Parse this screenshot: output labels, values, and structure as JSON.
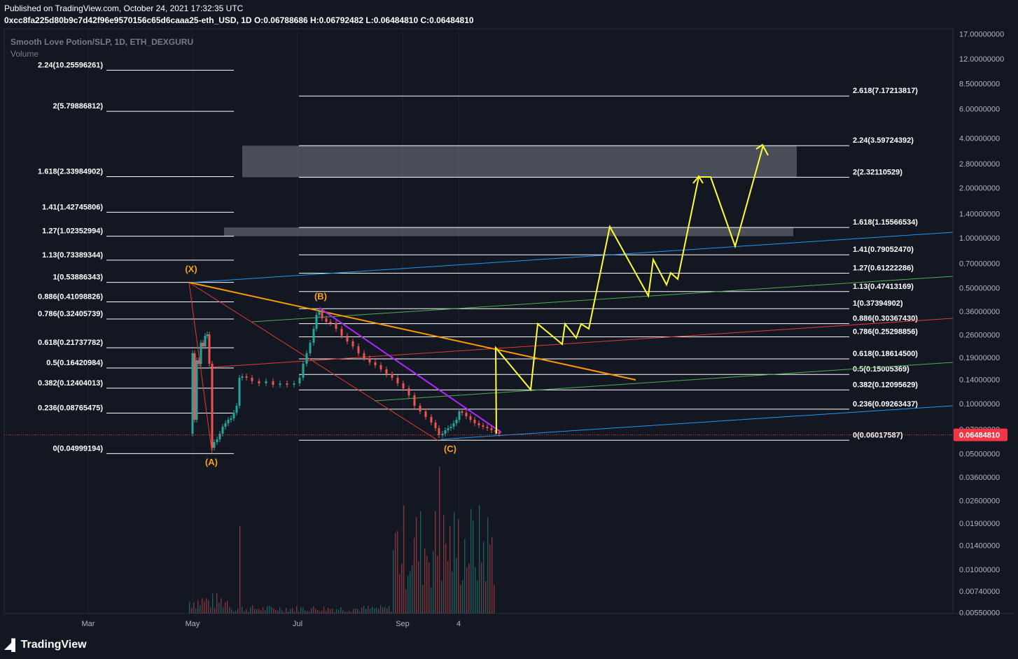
{
  "header": {
    "published": "Published on TradingView.com, October 24, 2021 17:32:35 UTC",
    "symbol_line": "0xcc8fa225d80b9c7d42f96e9570156c65d6caaa25-eth_USD, 1D",
    "o": "O:0.06788686",
    "h": "H:0.06792482",
    "l": "L:0.06484810",
    "c": "C:0.06484810"
  },
  "legend": {
    "title": "Smooth Love Potion/SLP, 1D, ETH_DEXGURU",
    "volume": "Volume"
  },
  "footer": {
    "logo_text": "TradingView"
  },
  "colors": {
    "background": "#131722",
    "fib_line": "#ffffff",
    "wave_label": "#f7a21b",
    "projection": "#ffff33",
    "trend_orange": "#ff9800",
    "trend_purple": "#b026ff",
    "trend_red": "#e53935",
    "channel_blue": "#2196f3",
    "channel_green": "#4caf50",
    "price_badge": "#f23645"
  },
  "chart_data": {
    "type": "candlestick",
    "scale": "log",
    "price_axis_ticks": [
      "17.00000000",
      "12.00000000",
      "8.50000000",
      "6.00000000",
      "4.00000000",
      "2.80000000",
      "2.00000000",
      "1.40000000",
      "1.00000000",
      "0.70000000",
      "0.50000000",
      "0.36000000",
      "0.26000000",
      "0.19000000",
      "0.14000000",
      "0.10000000",
      "0.07000000",
      "0.05000000",
      "0.03600000",
      "0.02600000",
      "0.01900000",
      "0.01400000",
      "0.01000000",
      "0.00740000",
      "0.00550000"
    ],
    "time_axis_ticks": [
      "Mar",
      "May",
      "Jul",
      "Sep",
      "4"
    ],
    "last_price": "0.06484810",
    "fib_left": [
      {
        "label": "2.24(10.25596261)",
        "value": 10.25596261
      },
      {
        "label": "2(5.79886812)",
        "value": 5.79886812
      },
      {
        "label": "1.618(2.33984902)",
        "value": 2.33984902
      },
      {
        "label": "1.41(1.42745806)",
        "value": 1.42745806
      },
      {
        "label": "1.27(1.02352994)",
        "value": 1.02352994
      },
      {
        "label": "1.13(0.73389344)",
        "value": 0.73389344
      },
      {
        "label": "1(0.53886343)",
        "value": 0.53886343
      },
      {
        "label": "0.886(0.41098826)",
        "value": 0.41098826
      },
      {
        "label": "0.786(0.32405739)",
        "value": 0.32405739
      },
      {
        "label": "0.618(0.21737782)",
        "value": 0.21737782
      },
      {
        "label": "0.5(0.16420984)",
        "value": 0.16420984
      },
      {
        "label": "0.382(0.12404013)",
        "value": 0.12404013
      },
      {
        "label": "0.236(0.08765475)",
        "value": 0.08765475
      },
      {
        "label": "0(0.04999194)",
        "value": 0.04999194
      }
    ],
    "fib_right": [
      {
        "label": "2.618(7.17213817)",
        "value": 7.17213817
      },
      {
        "label": "2.24(3.59724392)",
        "value": 3.59724392
      },
      {
        "label": "2(2.32110529)",
        "value": 2.32110529
      },
      {
        "label": "1.618(1.15566534)",
        "value": 1.15566534
      },
      {
        "label": "1.41(0.79052470)",
        "value": 0.7905247
      },
      {
        "label": "1.27(0.61222286)",
        "value": 0.61222286
      },
      {
        "label": "1.13(0.47413169)",
        "value": 0.47413169
      },
      {
        "label": "1(0.37394902)",
        "value": 0.37394902
      },
      {
        "label": "0.886(0.30367430)",
        "value": 0.3036743
      },
      {
        "label": "0.786(0.25298856)",
        "value": 0.25298856
      },
      {
        "label": "0.618(0.18614500)",
        "value": 0.186145
      },
      {
        "label": "0.5(0.15005369)",
        "value": 0.15005369
      },
      {
        "label": "0.382(0.12095629)",
        "value": 0.12095629
      },
      {
        "label": "0.236(0.09263437)",
        "value": 0.09263437
      },
      {
        "label": "0(0.06017587)",
        "value": 0.06017587
      }
    ],
    "wave_labels": [
      "(X)",
      "(A)",
      "(B)",
      "(C)"
    ]
  }
}
